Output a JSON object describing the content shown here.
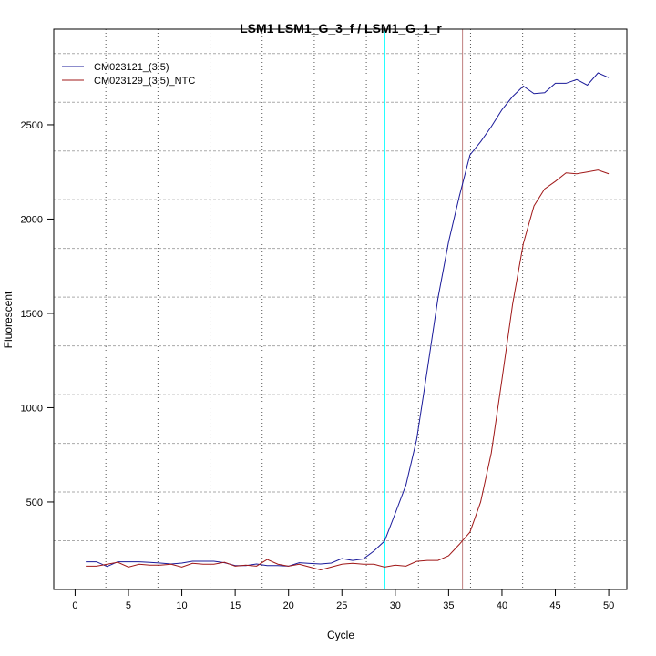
{
  "chart_data": {
    "type": "line",
    "title": "LSM1  LSM1_G_3_f / LSM1_G_1_r",
    "xlabel": "Cycle",
    "ylabel": "Fluorescent",
    "xlim": [
      -2,
      51.7
    ],
    "ylim": [
      36,
      3007
    ],
    "xticks": [
      0,
      5,
      10,
      15,
      20,
      25,
      30,
      35,
      40,
      45,
      50
    ],
    "yticks": [
      500,
      1000,
      1500,
      2000,
      2500
    ],
    "grid": true,
    "legend_position": "top-left",
    "threshold_cycle_line": 29,
    "threshold_cycle_line_color": "#00ffff",
    "ct_marker_line": 36.3,
    "ct_marker_line_color": "#c08080",
    "x": [
      1,
      2,
      3,
      4,
      5,
      6,
      7,
      8,
      9,
      10,
      11,
      12,
      13,
      14,
      15,
      16,
      17,
      18,
      19,
      20,
      21,
      22,
      23,
      24,
      25,
      26,
      27,
      28,
      29,
      30,
      31,
      32,
      33,
      34,
      35,
      36,
      37,
      38,
      39,
      40,
      41,
      42,
      43,
      44,
      45,
      46,
      47,
      48,
      49,
      50
    ],
    "series": [
      {
        "name": "CM023121_(3:5)",
        "color": "#1a1a9a",
        "values": [
          183,
          183,
          158,
          183,
          183,
          183,
          180,
          176,
          171,
          176,
          186,
          186,
          186,
          178,
          163,
          163,
          171,
          163,
          163,
          160,
          178,
          174,
          171,
          176,
          200,
          190,
          198,
          240,
          293,
          440,
          590,
          830,
          1200,
          1580,
          1880,
          2120,
          2340,
          2410,
          2490,
          2580,
          2650,
          2705,
          2665,
          2670,
          2720,
          2720,
          2740,
          2710,
          2775,
          2750
        ]
      },
      {
        "name": "CM023129_(3:5)_NTC",
        "color": "#a01818",
        "values": [
          160,
          160,
          170,
          180,
          155,
          170,
          165,
          165,
          170,
          155,
          175,
          170,
          170,
          180,
          160,
          165,
          160,
          195,
          170,
          160,
          170,
          155,
          140,
          155,
          170,
          175,
          170,
          170,
          155,
          165,
          160,
          185,
          190,
          190,
          215,
          275,
          340,
          500,
          760,
          1150,
          1550,
          1870,
          2070,
          2160,
          2200,
          2245,
          2240,
          2250,
          2260,
          2240
        ]
      }
    ]
  }
}
